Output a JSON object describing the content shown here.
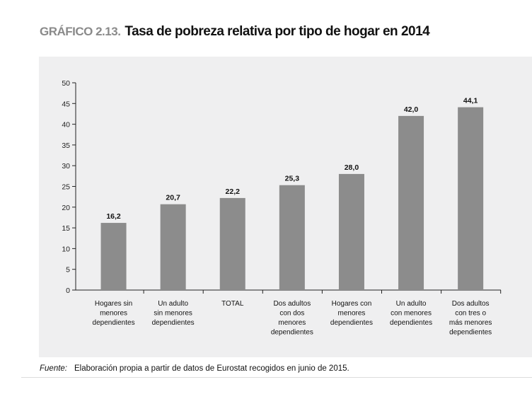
{
  "title": {
    "number": "GRÁFICO 2.13.",
    "text": "Tasa de pobreza relativa por tipo de hogar en 2014"
  },
  "chart_data": {
    "type": "bar",
    "categories": [
      [
        "Hogares sin",
        "menores",
        "dependientes"
      ],
      [
        "Un adulto",
        "sin menores",
        "dependientes"
      ],
      [
        "TOTAL"
      ],
      [
        "Dos adultos",
        "con dos",
        "menores",
        "dependientes"
      ],
      [
        "Hogares con",
        "menores",
        "dependientes"
      ],
      [
        "Un adulto",
        "con menores",
        "dependientes"
      ],
      [
        "Dos adultos",
        "con tres o",
        "más menores",
        "dependientes"
      ]
    ],
    "values": [
      16.2,
      20.7,
      22.2,
      25.3,
      28.0,
      42.0,
      44.1
    ],
    "data_labels": [
      "16,2",
      "20,7",
      "22,2",
      "25,3",
      "28,0",
      "42,0",
      "44,1"
    ],
    "yticks": [
      "0",
      "5",
      "10",
      "15",
      "20",
      "25",
      "30",
      "35",
      "40",
      "45",
      "50"
    ],
    "ylim": [
      0,
      50
    ],
    "grid": false,
    "bar_color": "#8c8c8c",
    "background_color": "#efeff0"
  },
  "source": {
    "label": "Fuente:",
    "text": "Elaboración propia a partir de datos de Eurostat recogidos en junio de 2015."
  }
}
